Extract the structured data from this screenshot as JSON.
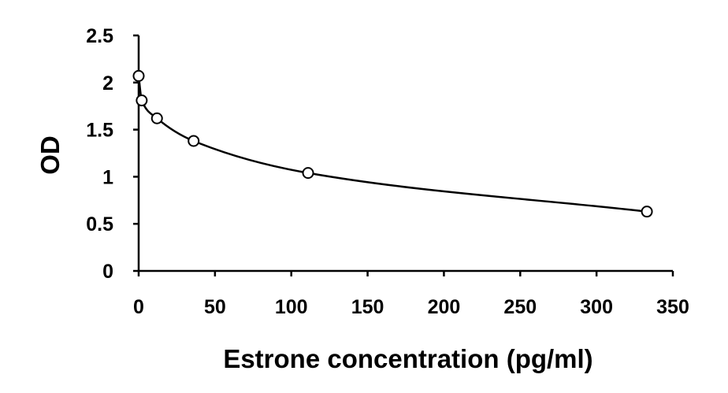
{
  "chart_data": {
    "type": "scatter",
    "title": "",
    "xlabel": "Estrone concentration (pg/ml)",
    "ylabel": "OD",
    "xlim": [
      0,
      350
    ],
    "ylim": [
      0,
      2.5
    ],
    "xticks": [
      0,
      50,
      100,
      150,
      200,
      250,
      300,
      350
    ],
    "yticks": [
      0,
      0.5,
      1,
      1.5,
      2,
      2.5
    ],
    "xtick_labels": [
      "0",
      "50",
      "100",
      "150",
      "200",
      "250",
      "300",
      "350"
    ],
    "ytick_labels": [
      "0",
      "0.5",
      "1",
      "1.5",
      "2",
      "2.5"
    ],
    "grid": false,
    "legend": false,
    "marker": "open-circle",
    "trend_curve": "smooth fitted curve through points",
    "series": [
      {
        "x": [
          0,
          2,
          12,
          36,
          111,
          333
        ],
        "y": [
          2.07,
          1.81,
          1.62,
          1.38,
          1.04,
          0.63
        ]
      }
    ]
  }
}
